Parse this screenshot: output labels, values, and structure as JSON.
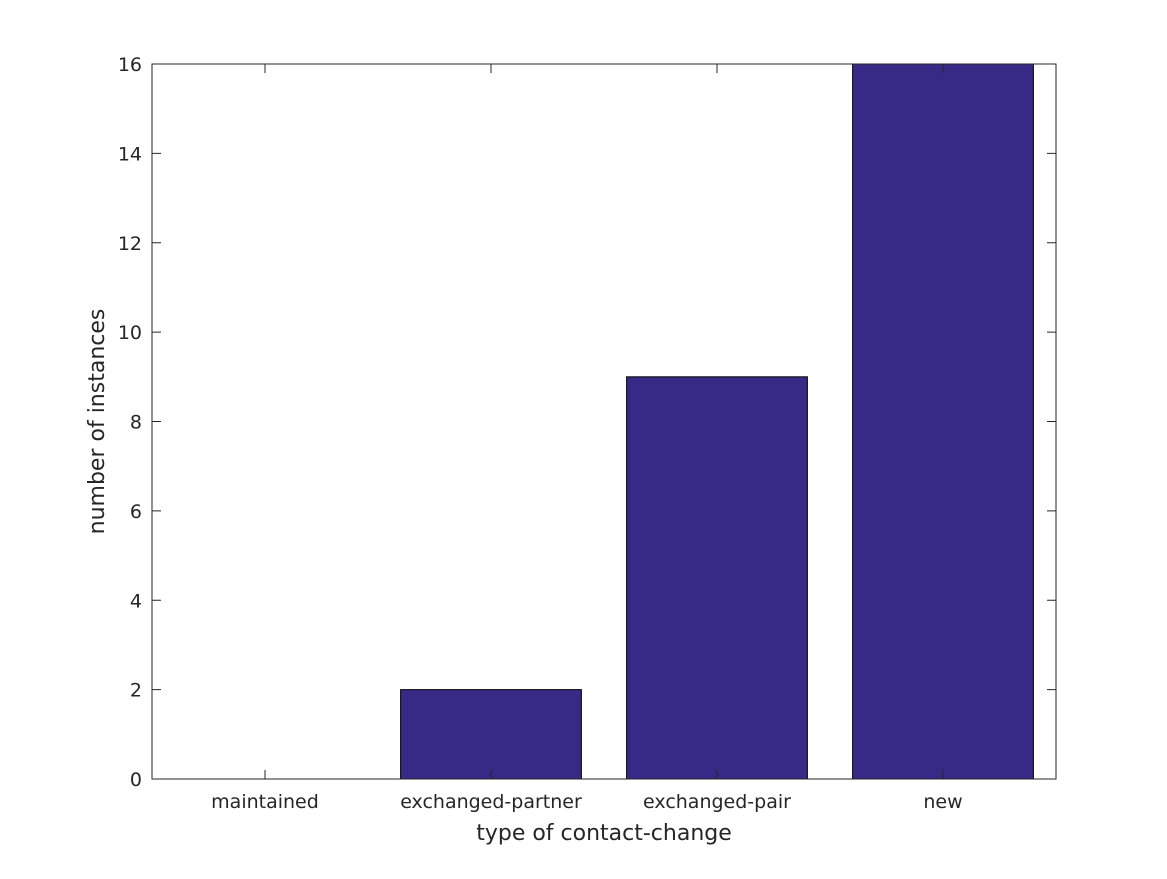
{
  "chart_data": {
    "type": "bar",
    "title": "",
    "xlabel": "type of contact-change",
    "ylabel": "number of instances",
    "categories": [
      "maintained",
      "exchanged-partner",
      "exchanged-pair",
      "new"
    ],
    "values": [
      0,
      2,
      9,
      16
    ],
    "ylim": [
      0,
      16
    ],
    "yticks": [
      "0",
      "2",
      "4",
      "6",
      "8",
      "10",
      "12",
      "14",
      "16"
    ],
    "grid": false,
    "legend": "none",
    "colors": {
      "bar": "#362a86",
      "bar_edge": "#000000",
      "axis": "#262626",
      "background": "#ffffff"
    }
  }
}
